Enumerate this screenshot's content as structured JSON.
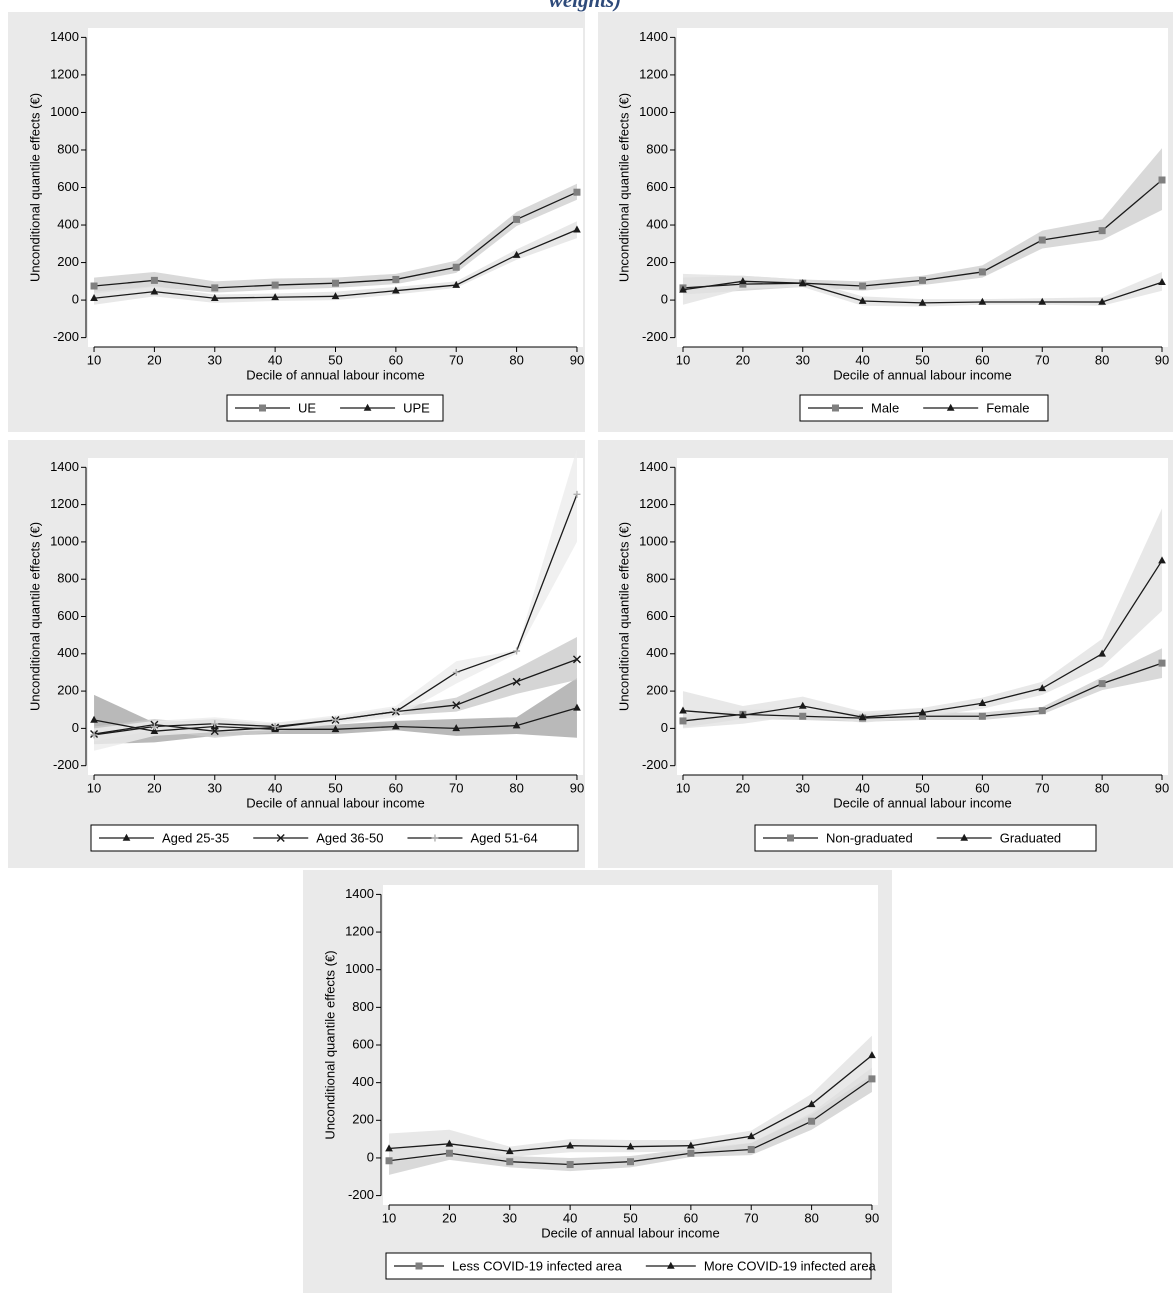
{
  "page_title": "weights)",
  "chart_data": [
    {
      "type": "line",
      "xlabel": "Decile of annual labour income",
      "ylabel": "Unconditional quantile effects (€)",
      "x": [
        10,
        20,
        30,
        40,
        50,
        60,
        70,
        80,
        90
      ],
      "xlim": [
        9,
        91
      ],
      "xticks": [
        10,
        20,
        30,
        40,
        50,
        60,
        70,
        80,
        90
      ],
      "ylim": [
        -250,
        1450
      ],
      "yticks": [
        -200,
        0,
        200,
        400,
        600,
        800,
        1000,
        1200,
        1400
      ],
      "series": [
        {
          "name": "UE",
          "color": "#808080",
          "marker": "square",
          "band_color": "#cfcfcf",
          "values": [
            75,
            105,
            65,
            80,
            90,
            110,
            175,
            430,
            575
          ],
          "lower": [
            35,
            70,
            40,
            55,
            65,
            85,
            145,
            395,
            535
          ],
          "upper": [
            120,
            150,
            100,
            115,
            120,
            140,
            210,
            470,
            620
          ]
        },
        {
          "name": "UPE",
          "color": "#1a1a1a",
          "marker": "triangle",
          "band_color": "#e2e2e2",
          "values": [
            10,
            45,
            10,
            15,
            20,
            50,
            80,
            240,
            375
          ],
          "lower": [
            -25,
            20,
            -15,
            -5,
            0,
            30,
            65,
            215,
            330
          ],
          "upper": [
            45,
            75,
            30,
            35,
            45,
            70,
            100,
            270,
            420
          ]
        }
      ]
    },
    {
      "type": "line",
      "xlabel": "Decile of annual labour income",
      "ylabel": "Unconditional quantile effects (€)",
      "x": [
        10,
        20,
        30,
        40,
        50,
        60,
        70,
        80,
        90
      ],
      "xlim": [
        9,
        91
      ],
      "xticks": [
        10,
        20,
        30,
        40,
        50,
        60,
        70,
        80,
        90
      ],
      "ylim": [
        -250,
        1450
      ],
      "yticks": [
        -200,
        0,
        200,
        400,
        600,
        800,
        1000,
        1200,
        1400
      ],
      "series": [
        {
          "name": "Male",
          "color": "#808080",
          "marker": "square",
          "band_color": "#cfcfcf",
          "values": [
            65,
            85,
            90,
            75,
            105,
            150,
            320,
            370,
            640
          ],
          "lower": [
            30,
            50,
            70,
            50,
            80,
            120,
            275,
            320,
            480
          ],
          "upper": [
            120,
            130,
            110,
            100,
            130,
            185,
            370,
            430,
            810
          ]
        },
        {
          "name": "Female",
          "color": "#1a1a1a",
          "marker": "triangle",
          "band_color": "#e2e2e2",
          "values": [
            55,
            100,
            90,
            -5,
            -15,
            -10,
            -10,
            -10,
            95
          ],
          "lower": [
            -25,
            60,
            70,
            -30,
            -35,
            -25,
            -25,
            -30,
            50
          ],
          "upper": [
            140,
            130,
            110,
            20,
            5,
            5,
            10,
            15,
            150
          ]
        }
      ]
    },
    {
      "type": "line",
      "xlabel": "Decile of annual labour income",
      "ylabel": "Unconditional quantile effects (€)",
      "x": [
        10,
        20,
        30,
        40,
        50,
        60,
        70,
        80,
        90
      ],
      "xlim": [
        9,
        91
      ],
      "xticks": [
        10,
        20,
        30,
        40,
        50,
        60,
        70,
        80,
        90
      ],
      "ylim": [
        -250,
        1450
      ],
      "yticks": [
        -200,
        0,
        200,
        400,
        600,
        800,
        1000,
        1200,
        1400
      ],
      "series": [
        {
          "name": "Aged 25-35",
          "color": "#1a1a1a",
          "marker": "triangle",
          "band_color": "#a8a8a8",
          "values": [
            45,
            -15,
            10,
            -5,
            -5,
            10,
            0,
            15,
            110
          ],
          "lower": [
            -85,
            -75,
            -40,
            -30,
            -30,
            -10,
            -40,
            -30,
            -50
          ],
          "upper": [
            180,
            30,
            50,
            20,
            20,
            40,
            50,
            60,
            270
          ]
        },
        {
          "name": "Aged 36-50",
          "color": "#1a1a1a",
          "marker": "x",
          "band_color": "#cacaca",
          "values": [
            -30,
            20,
            -15,
            5,
            45,
            90,
            125,
            250,
            370
          ],
          "lower": [
            -70,
            -10,
            -50,
            -20,
            30,
            70,
            90,
            185,
            260
          ],
          "upper": [
            10,
            50,
            20,
            30,
            60,
            110,
            165,
            320,
            490
          ]
        },
        {
          "name": "Aged 51-64",
          "color": "#b0b0b0",
          "marker": "plus",
          "band_color": "#ececec",
          "values": [
            -35,
            10,
            25,
            10,
            45,
            90,
            300,
            415,
            1255
          ],
          "lower": [
            -120,
            -40,
            -20,
            -10,
            20,
            60,
            240,
            400,
            1000
          ],
          "upper": [
            0,
            40,
            60,
            30,
            70,
            120,
            360,
            420,
            1500
          ]
        }
      ]
    },
    {
      "type": "line",
      "xlabel": "Decile of annual labour income",
      "ylabel": "Unconditional quantile effects (€)",
      "x": [
        10,
        20,
        30,
        40,
        50,
        60,
        70,
        80,
        90
      ],
      "xlim": [
        9,
        91
      ],
      "xticks": [
        10,
        20,
        30,
        40,
        50,
        60,
        70,
        80,
        90
      ],
      "ylim": [
        -250,
        1450
      ],
      "yticks": [
        -200,
        0,
        200,
        400,
        600,
        800,
        1000,
        1200,
        1400
      ],
      "series": [
        {
          "name": "Non-graduated",
          "color": "#808080",
          "marker": "square",
          "band_color": "#cfcfcf",
          "values": [
            40,
            75,
            65,
            55,
            65,
            65,
            95,
            240,
            350
          ],
          "lower": [
            5,
            50,
            45,
            35,
            45,
            45,
            75,
            205,
            270
          ],
          "upper": [
            75,
            100,
            100,
            80,
            85,
            85,
            115,
            275,
            430
          ]
        },
        {
          "name": "Graduated",
          "color": "#1a1a1a",
          "marker": "triangle",
          "band_color": "#e2e2e2",
          "values": [
            95,
            70,
            120,
            60,
            85,
            135,
            215,
            400,
            900
          ],
          "lower": [
            0,
            25,
            70,
            30,
            60,
            105,
            180,
            330,
            630
          ],
          "upper": [
            200,
            120,
            170,
            90,
            110,
            165,
            250,
            480,
            1180
          ]
        }
      ]
    },
    {
      "type": "line",
      "xlabel": "Decile of annual labour income",
      "ylabel": "Unconditional quantile effects (€)",
      "x": [
        10,
        20,
        30,
        40,
        50,
        60,
        70,
        80,
        90
      ],
      "xlim": [
        9,
        91
      ],
      "xticks": [
        10,
        20,
        30,
        40,
        50,
        60,
        70,
        80,
        90
      ],
      "ylim": [
        -250,
        1450
      ],
      "yticks": [
        -200,
        0,
        200,
        400,
        600,
        800,
        1000,
        1200,
        1400
      ],
      "series": [
        {
          "name": "Less COVID-19 infected area",
          "color": "#808080",
          "marker": "square",
          "band_color": "#cfcfcf",
          "values": [
            -15,
            25,
            -20,
            -35,
            -20,
            25,
            45,
            195,
            420
          ],
          "lower": [
            -90,
            -10,
            -50,
            -70,
            -50,
            5,
            15,
            150,
            350
          ],
          "upper": [
            60,
            60,
            10,
            0,
            10,
            50,
            80,
            240,
            480
          ]
        },
        {
          "name": "More COVID-19 infected area",
          "color": "#1a1a1a",
          "marker": "triangle",
          "band_color": "#e2e2e2",
          "values": [
            50,
            75,
            35,
            65,
            60,
            65,
            115,
            285,
            545
          ],
          "lower": [
            -20,
            10,
            5,
            30,
            30,
            35,
            80,
            230,
            440
          ],
          "upper": [
            130,
            150,
            60,
            100,
            95,
            95,
            145,
            340,
            650
          ]
        }
      ]
    }
  ]
}
